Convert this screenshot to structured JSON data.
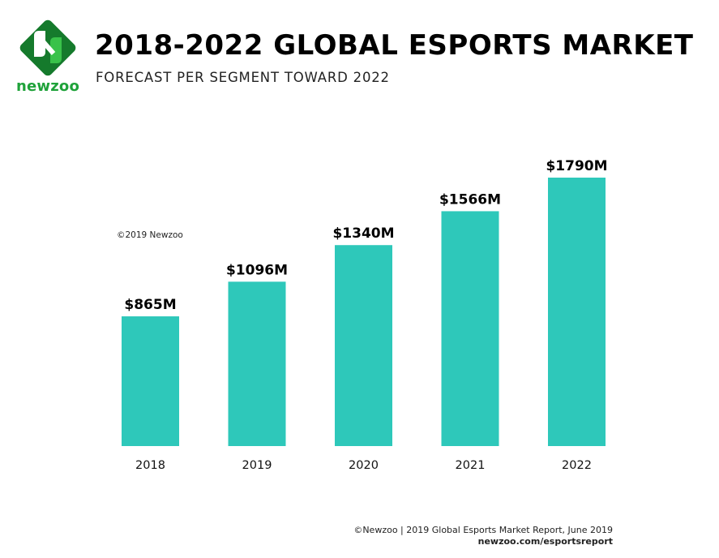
{
  "brand": {
    "name": "newzoo",
    "colors": {
      "logo_dark": "#157a2c",
      "logo_light": "#39c24a",
      "logo_text": "#1fa23a"
    }
  },
  "header": {
    "title": "2018-2022 GLOBAL ESPORTS MARKET",
    "subtitle": "FORECAST PER SEGMENT TOWARD 2022"
  },
  "chart_copyright": "©2019 Newzoo",
  "footer": {
    "source": "©Newzoo | 2019 Global Esports Market Report, June 2019",
    "url": "newzoo.com/esportsreport"
  },
  "chart_data": {
    "type": "bar",
    "title": "2018-2022 GLOBAL ESPORTS MARKET",
    "subtitle": "FORECAST PER SEGMENT TOWARD 2022",
    "categories": [
      "2018",
      "2019",
      "2020",
      "2021",
      "2022"
    ],
    "values": [
      865,
      1096,
      1340,
      1566,
      1790
    ],
    "data_labels": [
      "$865M",
      "$1096M",
      "$1340M",
      "$1566M",
      "$1790M"
    ],
    "unit": "$M",
    "xlabel": "",
    "ylabel": "",
    "ylim": [
      0,
      1790
    ],
    "grid": false,
    "bar_color": "#2ec8ba"
  }
}
